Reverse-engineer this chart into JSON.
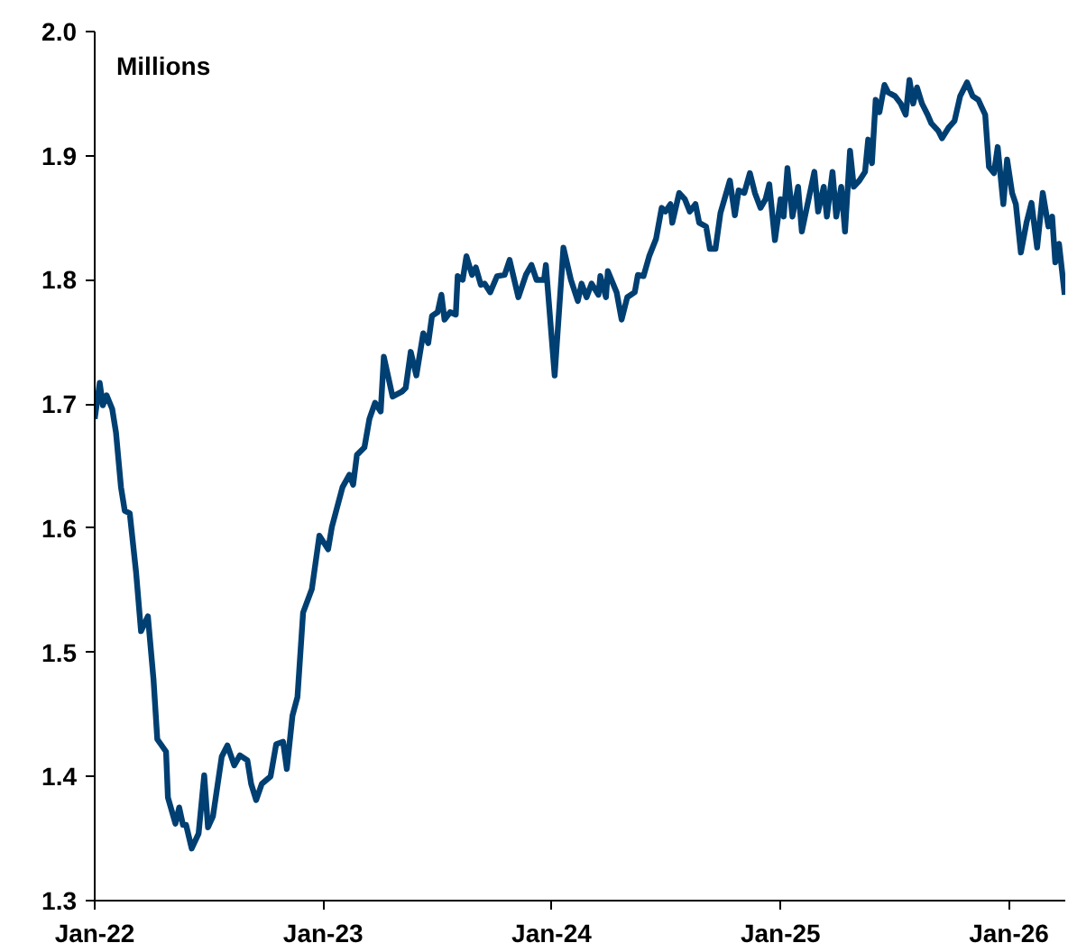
{
  "chart_data": {
    "type": "line",
    "annotations": [
      "Millions"
    ],
    "xlim": [
      "2022-01-01",
      "2026-04-01"
    ],
    "xticks": [
      {
        "value": "2022-01-01",
        "label": "Jan-22"
      },
      {
        "value": "2023-01-01",
        "label": "Jan-23"
      },
      {
        "value": "2024-01-01",
        "label": "Jan-24"
      },
      {
        "value": "2025-01-01",
        "label": "Jan-25"
      },
      {
        "value": "2026-01-01",
        "label": "Jan-26"
      }
    ],
    "ylim": [
      1.3,
      2.0
    ],
    "yticks": [
      1.3,
      1.4,
      1.5,
      1.6,
      1.7,
      1.8,
      1.9,
      {
        "value": 2.0,
        "label": "2.0"
      }
    ],
    "grid": false,
    "marker": "none",
    "line_style": "solid",
    "series": [
      {
        "color": "#003f72",
        "x": [
          "2022-01-01",
          "2022-01-09",
          "2022-01-14",
          "2022-01-20",
          "2022-01-29",
          "2022-02-04",
          "2022-02-12",
          "2022-02-18",
          "2022-02-26",
          "2022-03-08",
          "2022-03-16",
          "2022-03-27",
          "2022-04-05",
          "2022-04-11",
          "2022-04-25",
          "2022-04-28",
          "2022-05-10",
          "2022-05-16",
          "2022-05-22",
          "2022-05-27",
          "2022-06-05",
          "2022-06-16",
          "2022-06-25",
          "2022-07-01",
          "2022-07-09",
          "2022-07-23",
          "2022-08-01",
          "2022-08-12",
          "2022-08-21",
          "2022-09-02",
          "2022-09-08",
          "2022-09-16",
          "2022-09-25",
          "2022-10-09",
          "2022-10-18",
          "2022-10-29",
          "2022-11-04",
          "2022-11-13",
          "2022-11-21",
          "2022-11-30",
          "2022-12-14",
          "2022-12-26",
          "2023-01-09",
          "2023-01-15",
          "2023-02-01",
          "2023-02-12",
          "2023-02-18",
          "2023-02-24",
          "2023-03-08",
          "2023-03-16",
          "2023-03-25",
          "2023-04-03",
          "2023-04-08",
          "2023-04-22",
          "2023-05-07",
          "2023-05-13",
          "2023-05-21",
          "2023-05-30",
          "2023-06-10",
          "2023-06-18",
          "2023-06-24",
          "2023-07-03",
          "2023-07-09",
          "2023-07-14",
          "2023-07-23",
          "2023-08-01",
          "2023-08-04",
          "2023-08-12",
          "2023-08-18",
          "2023-08-27",
          "2023-09-02",
          "2023-09-10",
          "2023-09-16",
          "2023-09-25",
          "2023-10-06",
          "2023-10-18",
          "2023-10-26",
          "2023-11-09",
          "2023-11-21",
          "2023-11-30",
          "2023-12-08",
          "2023-12-20",
          "2023-12-23",
          "2024-01-06",
          "2024-01-20",
          "2024-02-01",
          "2024-02-12",
          "2024-02-18",
          "2024-02-26",
          "2024-03-05",
          "2024-03-16",
          "2024-03-19",
          "2024-03-28",
          "2024-03-31",
          "2024-04-14",
          "2024-04-22",
          "2024-05-01",
          "2024-05-13",
          "2024-05-18",
          "2024-05-27",
          "2024-06-05",
          "2024-06-16",
          "2024-06-25",
          "2024-07-01",
          "2024-07-09",
          "2024-07-12",
          "2024-07-23",
          "2024-08-01",
          "2024-08-09",
          "2024-08-18",
          "2024-08-24",
          "2024-09-04",
          "2024-09-10",
          "2024-09-19",
          "2024-09-27",
          "2024-10-12",
          "2024-10-20",
          "2024-10-26",
          "2024-11-04",
          "2024-11-13",
          "2024-11-21",
          "2024-11-30",
          "2024-12-08",
          "2024-12-14",
          "2024-12-23",
          "2025-01-01",
          "2025-01-06",
          "2025-01-12",
          "2025-01-20",
          "2025-01-29",
          "2025-02-04",
          "2025-02-09",
          "2025-02-24",
          "2025-03-02",
          "2025-03-11",
          "2025-03-16",
          "2025-03-25",
          "2025-03-31",
          "2025-04-08",
          "2025-04-14",
          "2025-04-22",
          "2025-04-28",
          "2025-05-07",
          "2025-05-16",
          "2025-05-21",
          "2025-05-27",
          "2025-06-02",
          "2025-06-08",
          "2025-06-16",
          "2025-06-22",
          "2025-07-03",
          "2025-07-12",
          "2025-07-20",
          "2025-07-26",
          "2025-08-01",
          "2025-08-07",
          "2025-08-15",
          "2025-08-24",
          "2025-08-30",
          "2025-09-10",
          "2025-09-16",
          "2025-09-27",
          "2025-10-06",
          "2025-10-15",
          "2025-10-26",
          "2025-11-04",
          "2025-11-13",
          "2025-11-24",
          "2025-11-30",
          "2025-12-08",
          "2025-12-14",
          "2025-12-23",
          "2025-12-29",
          "2026-01-06",
          "2026-01-12",
          "2026-01-20",
          "2026-01-29",
          "2026-02-06",
          "2026-02-15",
          "2026-02-24",
          "2026-03-05",
          "2026-03-11",
          "2026-03-16",
          "2026-03-22",
          "2026-03-31"
        ],
        "values": [
          1.688,
          1.717,
          1.699,
          1.707,
          1.696,
          1.677,
          1.633,
          1.614,
          1.612,
          1.565,
          1.517,
          1.529,
          1.478,
          1.43,
          1.42,
          1.383,
          1.362,
          1.375,
          1.361,
          1.361,
          1.342,
          1.354,
          1.401,
          1.359,
          1.368,
          1.416,
          1.425,
          1.409,
          1.417,
          1.413,
          1.394,
          1.381,
          1.394,
          1.4,
          1.426,
          1.428,
          1.406,
          1.449,
          1.464,
          1.532,
          1.551,
          1.594,
          1.583,
          1.601,
          1.633,
          1.643,
          1.635,
          1.659,
          1.665,
          1.688,
          1.701,
          1.694,
          1.738,
          1.706,
          1.71,
          1.713,
          1.742,
          1.723,
          1.757,
          1.749,
          1.771,
          1.774,
          1.788,
          1.768,
          1.774,
          1.772,
          1.803,
          1.8,
          1.819,
          1.804,
          1.81,
          1.796,
          1.797,
          1.79,
          1.803,
          1.804,
          1.816,
          1.786,
          1.804,
          1.812,
          1.8,
          1.8,
          1.812,
          1.723,
          1.826,
          1.8,
          1.783,
          1.797,
          1.786,
          1.797,
          1.788,
          1.803,
          1.786,
          1.807,
          1.79,
          1.768,
          1.786,
          1.79,
          1.804,
          1.803,
          1.819,
          1.833,
          1.858,
          1.855,
          1.861,
          1.846,
          1.87,
          1.865,
          1.855,
          1.861,
          1.846,
          1.843,
          1.825,
          1.825,
          1.854,
          1.88,
          1.852,
          1.872,
          1.87,
          1.886,
          1.87,
          1.858,
          1.865,
          1.877,
          1.832,
          1.865,
          1.851,
          1.89,
          1.851,
          1.875,
          1.839,
          1.851,
          1.887,
          1.855,
          1.875,
          1.851,
          1.887,
          1.851,
          1.875,
          1.839,
          1.904,
          1.875,
          1.88,
          1.887,
          1.913,
          1.894,
          1.945,
          1.935,
          1.957,
          1.951,
          1.948,
          1.942,
          1.933,
          1.961,
          1.942,
          1.955,
          1.942,
          1.933,
          1.926,
          1.92,
          1.914,
          1.923,
          1.928,
          1.948,
          1.959,
          1.948,
          1.945,
          1.933,
          1.891,
          1.886,
          1.907,
          1.861,
          1.897,
          1.87,
          1.861,
          1.822,
          1.846,
          1.862,
          1.826,
          1.87,
          1.843,
          1.851,
          1.814,
          1.829,
          1.788
        ]
      }
    ]
  }
}
